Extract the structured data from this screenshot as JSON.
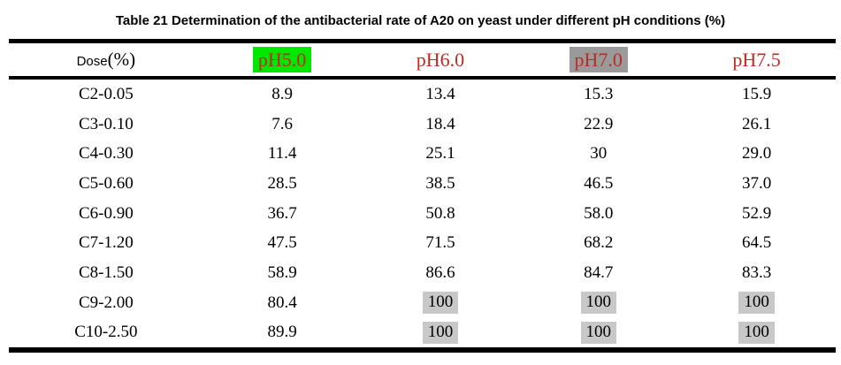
{
  "page": {
    "title": "Table 21 Determination of the antibacterial rate of A20 on yeast under different pH conditions (%)"
  },
  "table": {
    "dose_header": {
      "label": "Dose",
      "unit": "(%)"
    },
    "columns": [
      {
        "label": "pH5.0",
        "highlight": "green"
      },
      {
        "label": "pH6.0",
        "highlight": "none"
      },
      {
        "label": "pH7.0",
        "highlight": "gray"
      },
      {
        "label": "pH7.5",
        "highlight": "none"
      }
    ],
    "rows": [
      {
        "dose": "C2-0.05",
        "values": [
          "8.9",
          "13.4",
          "15.3",
          "15.9"
        ]
      },
      {
        "dose": "C3-0.10",
        "values": [
          "7.6",
          "18.4",
          "22.9",
          "26.1"
        ]
      },
      {
        "dose": "C4-0.30",
        "values": [
          "11.4",
          "25.1",
          "30",
          "29.0"
        ]
      },
      {
        "dose": "C5-0.60",
        "values": [
          "28.5",
          "38.5",
          "46.5",
          "37.0"
        ]
      },
      {
        "dose": "C6-0.90",
        "values": [
          "36.7",
          "50.8",
          "58.0",
          "52.9"
        ]
      },
      {
        "dose": "C7-1.20",
        "values": [
          "47.5",
          "71.5",
          "68.2",
          "64.5"
        ]
      },
      {
        "dose": "C8-1.50",
        "values": [
          "58.9",
          "86.6",
          "84.7",
          "83.3"
        ]
      },
      {
        "dose": "C9-2.00",
        "values": [
          "80.4",
          "100",
          "100",
          "100"
        ]
      },
      {
        "dose": "C10-2.50",
        "values": [
          "89.9",
          "100",
          "100",
          "100"
        ]
      }
    ],
    "highlighted_value": "100"
  },
  "colors": {
    "header_text_red": "#bf2b24",
    "ph5_highlight_green": "#00e800",
    "ph7_highlight_gray": "#9a9a9a",
    "value_highlight_gray": "#c8c8c8",
    "rule_black": "#000000"
  },
  "chart_data": {
    "type": "table",
    "title": "Table 21 Determination of the antibacterial rate of A20 on yeast under different pH conditions (%)",
    "columns": [
      "Dose(%)",
      "pH5.0",
      "pH6.0",
      "pH7.0",
      "pH7.5"
    ],
    "rows": [
      [
        "C2-0.05",
        8.9,
        13.4,
        15.3,
        15.9
      ],
      [
        "C3-0.10",
        7.6,
        18.4,
        22.9,
        26.1
      ],
      [
        "C4-0.30",
        11.4,
        25.1,
        30,
        29.0
      ],
      [
        "C5-0.60",
        28.5,
        38.5,
        46.5,
        37.0
      ],
      [
        "C6-0.90",
        36.7,
        50.8,
        58.0,
        52.9
      ],
      [
        "C7-1.20",
        47.5,
        71.5,
        68.2,
        64.5
      ],
      [
        "C8-1.50",
        58.9,
        86.6,
        84.7,
        83.3
      ],
      [
        "C9-2.00",
        80.4,
        100,
        100,
        100
      ],
      [
        "C10-2.50",
        89.9,
        100,
        100,
        100
      ]
    ]
  }
}
